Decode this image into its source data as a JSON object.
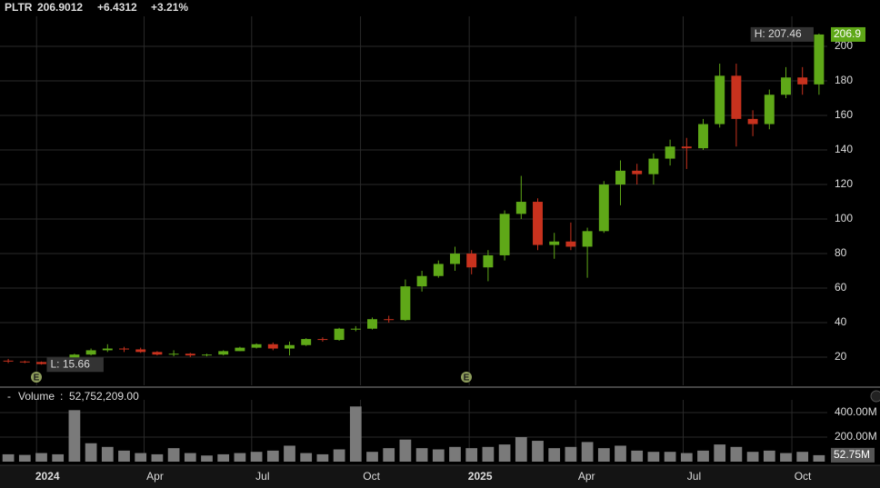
{
  "header": {
    "symbol": "PLTR",
    "price": "206.9012",
    "change": "+6.4312",
    "change_pct": "+3.21%"
  },
  "chart_data": [
    {
      "type": "candlestick",
      "open": [
        18,
        17.5,
        17.2,
        16,
        16.5,
        21.5,
        24,
        25,
        24.5,
        23,
        21.5,
        22,
        21,
        21.5,
        23.5,
        25.5,
        27.5,
        25,
        27,
        30.5,
        30,
        36.5,
        36.5,
        42,
        41.5,
        61,
        67,
        74,
        80,
        72,
        79,
        103,
        110,
        85,
        87,
        84,
        93,
        120,
        128,
        126,
        135,
        142,
        141,
        155,
        183,
        158,
        155,
        172,
        182,
        178
      ],
      "high": [
        19,
        18,
        17.5,
        17,
        22,
        25,
        27.5,
        26,
        25.5,
        23.5,
        24,
        22.5,
        22,
        24,
        26,
        28,
        28.5,
        29,
        31,
        31.5,
        37,
        38,
        43,
        44,
        65,
        70,
        76,
        84,
        82,
        82,
        105,
        125,
        112,
        92,
        98,
        95,
        122,
        134,
        132,
        138,
        146,
        147,
        158,
        190,
        190,
        163,
        175,
        188,
        188,
        207.46
      ],
      "low": [
        16.6,
        16.5,
        15.66,
        15.7,
        16,
        21,
        23,
        23,
        22.5,
        21,
        20.5,
        20,
        20.5,
        21,
        23.5,
        25,
        24,
        21,
        26.5,
        29,
        29.5,
        35,
        36,
        40,
        41,
        58,
        66,
        70,
        68,
        64,
        76,
        100,
        82,
        77,
        82,
        66,
        92,
        108,
        120,
        120,
        131,
        129,
        140,
        153,
        142,
        148,
        152,
        170,
        172,
        172
      ],
      "close": [
        17.5,
        17.2,
        16,
        16.5,
        21.5,
        24,
        25,
        24.5,
        23,
        21.5,
        22,
        21,
        21.5,
        23.5,
        25.5,
        27.5,
        25,
        27,
        30.5,
        30,
        36.5,
        36.5,
        42,
        41.5,
        61,
        67,
        74,
        80,
        72,
        79,
        103,
        110,
        85,
        87,
        84,
        93,
        120,
        128,
        126,
        135,
        142,
        141,
        155,
        183,
        158,
        155,
        172,
        182,
        178,
        206.9012
      ],
      "up_color": "#5fa818",
      "down_color": "#c8321e",
      "xlim": [
        0,
        50
      ],
      "ylim": [
        3.7,
        217.4
      ],
      "yticks": [
        20,
        40,
        60,
        80,
        100,
        120,
        140,
        160,
        180,
        200
      ],
      "grid": true,
      "last_label": "206.9",
      "annotations": [
        {
          "text": "H: 207.46",
          "value": 207.46
        },
        {
          "text": "L: 15.66",
          "value": 15.66
        }
      ],
      "earnings_label": "E"
    },
    {
      "type": "bar",
      "name": "Volume",
      "readout": "52,752,209.00",
      "color": "#7a7a7a",
      "values": [
        60000000,
        55000000,
        70000000,
        60000000,
        420000000,
        150000000,
        120000000,
        90000000,
        70000000,
        60000000,
        110000000,
        70000000,
        50000000,
        60000000,
        70000000,
        80000000,
        90000000,
        130000000,
        70000000,
        60000000,
        100000000,
        450000000,
        80000000,
        110000000,
        180000000,
        110000000,
        100000000,
        120000000,
        110000000,
        120000000,
        140000000,
        200000000,
        170000000,
        110000000,
        120000000,
        160000000,
        110000000,
        130000000,
        90000000,
        80000000,
        80000000,
        70000000,
        90000000,
        140000000,
        120000000,
        80000000,
        90000000,
        70000000,
        80000000,
        52752209
      ],
      "last_label": "52.75M",
      "xlim": [
        0,
        50
      ],
      "ylim": [
        0,
        504000000
      ],
      "yticks": [
        {
          "value": 200000000,
          "label": "200.00M"
        },
        {
          "value": 400000000,
          "label": "400.00M"
        }
      ],
      "xticks": [
        {
          "value": 2.21,
          "label": "2024"
        },
        {
          "value": 8.71,
          "label": "Apr"
        },
        {
          "value": 15.21,
          "label": "Jul"
        },
        {
          "value": 21.79,
          "label": "Oct"
        },
        {
          "value": 28.36,
          "label": "2025"
        },
        {
          "value": 34.79,
          "label": "Apr"
        },
        {
          "value": 41.29,
          "label": "Jul"
        },
        {
          "value": 47.86,
          "label": "Oct"
        }
      ],
      "grid": true
    }
  ]
}
